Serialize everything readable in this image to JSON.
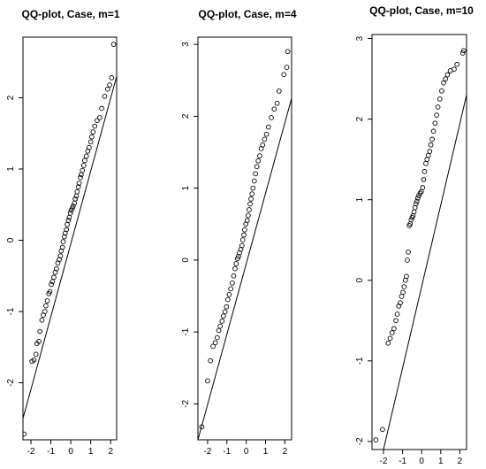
{
  "figure": {
    "type": "multi-panel scatter (QQ-plot)"
  },
  "chart_data": [
    {
      "type": "scatter",
      "title": "QQ-plot,  Case, m=1",
      "xlabel": "",
      "ylabel": "",
      "xlim": [
        -2.4,
        2.3
      ],
      "ylim": [
        -2.8,
        2.85
      ],
      "xticks": [
        -2,
        -1,
        0,
        1,
        2
      ],
      "xtick_labels": [
        "-2",
        "-1",
        "0",
        "1",
        "2"
      ],
      "yticks": [
        -2,
        -1,
        0,
        1,
        2
      ],
      "ytick_labels": [
        "-2",
        "-1",
        "0",
        "1",
        "2"
      ],
      "reference_line": [
        [
          -2.4,
          -2.5
        ],
        [
          2.3,
          2.3
        ]
      ],
      "points": [
        [
          -2.35,
          -2.72
        ],
        [
          -1.95,
          -1.7
        ],
        [
          -1.85,
          -1.68
        ],
        [
          -1.75,
          -1.6
        ],
        [
          -1.7,
          -1.45
        ],
        [
          -1.6,
          -1.42
        ],
        [
          -1.55,
          -1.28
        ],
        [
          -1.45,
          -1.12
        ],
        [
          -1.38,
          -1.05
        ],
        [
          -1.3,
          -1.0
        ],
        [
          -1.25,
          -0.92
        ],
        [
          -1.18,
          -0.85
        ],
        [
          -1.1,
          -0.75
        ],
        [
          -1.05,
          -0.72
        ],
        [
          -0.98,
          -0.62
        ],
        [
          -0.92,
          -0.58
        ],
        [
          -0.85,
          -0.52
        ],
        [
          -0.78,
          -0.45
        ],
        [
          -0.72,
          -0.4
        ],
        [
          -0.65,
          -0.32
        ],
        [
          -0.58,
          -0.27
        ],
        [
          -0.52,
          -0.22
        ],
        [
          -0.48,
          -0.15
        ],
        [
          -0.42,
          -0.1
        ],
        [
          -0.38,
          -0.02
        ],
        [
          -0.32,
          0.05
        ],
        [
          -0.28,
          0.1
        ],
        [
          -0.22,
          0.15
        ],
        [
          -0.18,
          0.22
        ],
        [
          -0.12,
          0.28
        ],
        [
          -0.08,
          0.32
        ],
        [
          -0.02,
          0.38
        ],
        [
          0.02,
          0.42
        ],
        [
          0.08,
          0.45
        ],
        [
          0.12,
          0.48
        ],
        [
          0.18,
          0.52
        ],
        [
          0.22,
          0.58
        ],
        [
          0.28,
          0.62
        ],
        [
          0.32,
          0.68
        ],
        [
          0.38,
          0.75
        ],
        [
          0.42,
          0.8
        ],
        [
          0.48,
          0.88
        ],
        [
          0.52,
          0.92
        ],
        [
          0.58,
          0.98
        ],
        [
          0.65,
          1.05
        ],
        [
          0.7,
          1.12
        ],
        [
          0.78,
          1.18
        ],
        [
          0.85,
          1.25
        ],
        [
          0.92,
          1.3
        ],
        [
          1.0,
          1.38
        ],
        [
          1.05,
          1.45
        ],
        [
          1.12,
          1.52
        ],
        [
          1.2,
          1.6
        ],
        [
          1.32,
          1.68
        ],
        [
          1.45,
          1.72
        ],
        [
          1.55,
          1.85
        ],
        [
          1.7,
          2.02
        ],
        [
          1.85,
          2.12
        ],
        [
          1.95,
          2.18
        ],
        [
          2.05,
          2.28
        ],
        [
          2.15,
          2.75
        ]
      ]
    },
    {
      "type": "scatter",
      "title": "QQ-plot,  Case, m=4",
      "xlabel": "",
      "ylabel": "",
      "xlim": [
        -2.5,
        2.35
      ],
      "ylim": [
        -2.5,
        3.1
      ],
      "xticks": [
        -2,
        -1,
        0,
        1,
        2
      ],
      "xtick_labels": [
        "-2",
        "-1",
        "0",
        "1",
        "2"
      ],
      "yticks": [
        -2,
        -1,
        0,
        1,
        2,
        3
      ],
      "ytick_labels": [
        "-2",
        "-1",
        "0",
        "1",
        "2",
        "3"
      ],
      "reference_line": [
        [
          -2.5,
          -2.5
        ],
        [
          2.35,
          2.25
        ]
      ],
      "points": [
        [
          -2.3,
          -2.32
        ],
        [
          -2.0,
          -1.68
        ],
        [
          -1.85,
          -1.4
        ],
        [
          -1.72,
          -1.2
        ],
        [
          -1.6,
          -1.15
        ],
        [
          -1.5,
          -1.08
        ],
        [
          -1.42,
          -0.98
        ],
        [
          -1.35,
          -0.92
        ],
        [
          -1.25,
          -0.85
        ],
        [
          -1.18,
          -0.78
        ],
        [
          -1.1,
          -0.72
        ],
        [
          -1.02,
          -0.65
        ],
        [
          -0.95,
          -0.55
        ],
        [
          -0.88,
          -0.48
        ],
        [
          -0.8,
          -0.4
        ],
        [
          -0.72,
          -0.32
        ],
        [
          -0.65,
          -0.22
        ],
        [
          -0.58,
          -0.12
        ],
        [
          -0.52,
          -0.05
        ],
        [
          -0.45,
          0.02
        ],
        [
          -0.4,
          0.05
        ],
        [
          -0.35,
          0.1
        ],
        [
          -0.28,
          0.15
        ],
        [
          -0.22,
          0.2
        ],
        [
          -0.18,
          0.28
        ],
        [
          -0.12,
          0.35
        ],
        [
          -0.08,
          0.42
        ],
        [
          -0.02,
          0.5
        ],
        [
          0.05,
          0.55
        ],
        [
          0.1,
          0.62
        ],
        [
          0.15,
          0.7
        ],
        [
          0.2,
          0.78
        ],
        [
          0.25,
          0.85
        ],
        [
          0.3,
          0.92
        ],
        [
          0.35,
          1.0
        ],
        [
          0.42,
          1.1
        ],
        [
          0.48,
          1.2
        ],
        [
          0.55,
          1.3
        ],
        [
          0.62,
          1.38
        ],
        [
          0.7,
          1.45
        ],
        [
          0.78,
          1.55
        ],
        [
          0.85,
          1.6
        ],
        [
          0.95,
          1.68
        ],
        [
          1.05,
          1.75
        ],
        [
          1.15,
          1.85
        ],
        [
          1.3,
          1.98
        ],
        [
          1.45,
          2.1
        ],
        [
          1.6,
          2.18
        ],
        [
          1.7,
          2.35
        ],
        [
          1.95,
          2.58
        ],
        [
          2.1,
          2.68
        ],
        [
          2.15,
          2.9
        ]
      ]
    },
    {
      "type": "scatter",
      "title": "QQ-plot,  Case, m=10",
      "xlabel": "",
      "ylabel": "",
      "xlim": [
        -2.6,
        2.35
      ],
      "ylim": [
        -2.1,
        3.05
      ],
      "xticks": [
        -2,
        -1,
        0,
        1,
        2
      ],
      "xtick_labels": [
        "-2",
        "-1",
        "0",
        "1",
        "2"
      ],
      "yticks": [
        -2,
        -1,
        0,
        1,
        2,
        3
      ],
      "ytick_labels": [
        "-2",
        "-1",
        "0",
        "1",
        "2",
        "3"
      ],
      "reference_line": [
        [
          -2.0,
          -2.1
        ],
        [
          2.35,
          2.3
        ]
      ],
      "points": [
        [
          -2.4,
          -1.98
        ],
        [
          -2.05,
          -1.85
        ],
        [
          -1.75,
          -0.78
        ],
        [
          -1.65,
          -0.72
        ],
        [
          -1.55,
          -0.65
        ],
        [
          -1.45,
          -0.6
        ],
        [
          -1.35,
          -0.5
        ],
        [
          -1.28,
          -0.42
        ],
        [
          -1.2,
          -0.32
        ],
        [
          -1.12,
          -0.28
        ],
        [
          -1.05,
          -0.2
        ],
        [
          -0.98,
          -0.15
        ],
        [
          -0.92,
          -0.08
        ],
        [
          -0.85,
          0.0
        ],
        [
          -0.8,
          0.05
        ],
        [
          -0.75,
          0.25
        ],
        [
          -0.7,
          0.35
        ],
        [
          -0.65,
          0.68
        ],
        [
          -0.6,
          0.7
        ],
        [
          -0.55,
          0.75
        ],
        [
          -0.5,
          0.78
        ],
        [
          -0.45,
          0.8
        ],
        [
          -0.4,
          0.85
        ],
        [
          -0.35,
          0.9
        ],
        [
          -0.3,
          0.95
        ],
        [
          -0.25,
          0.98
        ],
        [
          -0.2,
          1.02
        ],
        [
          -0.15,
          1.05
        ],
        [
          -0.08,
          1.08
        ],
        [
          -0.02,
          1.1
        ],
        [
          0.05,
          1.15
        ],
        [
          0.1,
          1.25
        ],
        [
          0.15,
          1.35
        ],
        [
          0.22,
          1.45
        ],
        [
          0.28,
          1.5
        ],
        [
          0.35,
          1.55
        ],
        [
          0.42,
          1.6
        ],
        [
          0.48,
          1.68
        ],
        [
          0.55,
          1.75
        ],
        [
          0.62,
          1.85
        ],
        [
          0.7,
          1.95
        ],
        [
          0.78,
          2.05
        ],
        [
          0.85,
          2.15
        ],
        [
          0.95,
          2.25
        ],
        [
          1.05,
          2.35
        ],
        [
          1.15,
          2.45
        ],
        [
          1.25,
          2.5
        ],
        [
          1.35,
          2.55
        ],
        [
          1.5,
          2.6
        ],
        [
          1.7,
          2.62
        ],
        [
          1.85,
          2.68
        ],
        [
          2.15,
          2.82
        ],
        [
          2.2,
          2.85
        ]
      ]
    }
  ]
}
